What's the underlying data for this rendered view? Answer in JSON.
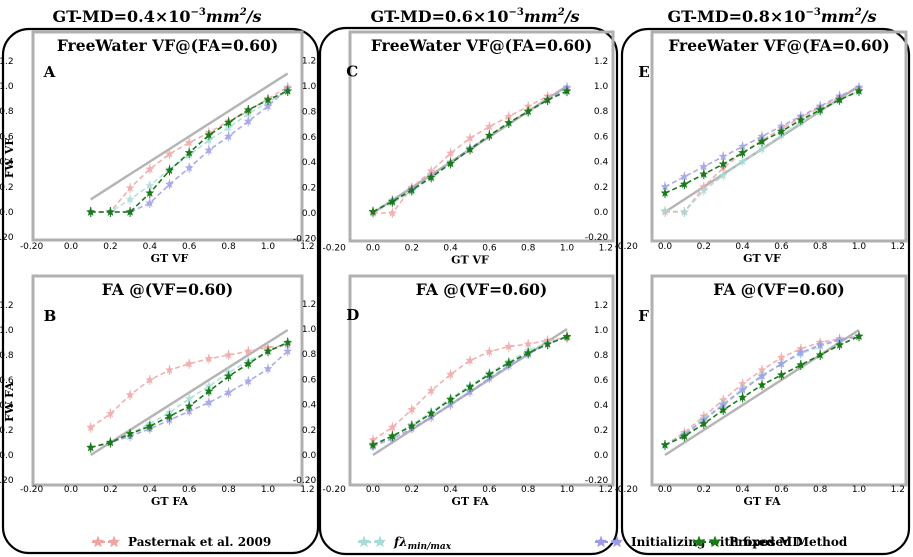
{
  "figure": {
    "col_titles": [
      {
        "prefix": "GT-MD=",
        "value": "0.4",
        "mid": "×10",
        "sup": "−3",
        "unit": "mm",
        "unit_sup": "2",
        "unit_tail": "/s"
      },
      {
        "prefix": "GT-MD=",
        "value": "0.6",
        "mid": "×10",
        "sup": "−3",
        "unit": "mm",
        "unit_sup": "2",
        "unit_tail": "/s"
      },
      {
        "prefix": "GT-MD=",
        "value": "0.8",
        "mid": "×10",
        "sup": "−3",
        "unit": "mm",
        "unit_sup": "2",
        "unit_tail": "/s"
      }
    ],
    "row_ylabels": [
      "FW VF",
      "FW FA"
    ],
    "legend": [
      {
        "label": "Pasternak et al. 2009",
        "color": "#f0a3a3"
      },
      {
        "label_f": "f",
        "label_l": "λ",
        "label_sub": "min/max",
        "color": "#a8dcd9"
      },
      {
        "label": "Initializing with fixed MD",
        "color": "#9c9ce6"
      },
      {
        "label": "Proposed Method",
        "color": "#1a7a1a"
      }
    ],
    "colors": {
      "pasternak": "#f0a3a3",
      "flambda": "#a8dcd9",
      "fixedmd": "#9c9ce6",
      "proposed": "#1a7a1a",
      "identity": "#b5b5b5",
      "frame": "#b0b0b0"
    }
  },
  "chart_data": [
    {
      "type": "line",
      "panel": "A",
      "title": "FreeWater VF@(FA=0.60)",
      "xlabel": "GT VF",
      "ylabel": "FW VF",
      "xlim": [
        -0.2,
        1.2
      ],
      "ylim": [
        -0.2,
        1.2
      ],
      "xticks": [
        "-0.20",
        "0.0",
        "0.2",
        "0.4",
        "0.6",
        "0.8",
        "1.0",
        "1.2"
      ],
      "yticks": [
        "-0.20",
        "0.0",
        "0.2",
        "0.4",
        "0.6",
        "0.8",
        "1.0",
        "1.2"
      ],
      "identity": [
        [
          0.1,
          0.1
        ],
        [
          1.1,
          1.1
        ]
      ],
      "series": [
        {
          "name": "Pasternak et al. 2009",
          "x": [
            0.1,
            0.2,
            0.3,
            0.4,
            0.5,
            0.6,
            0.7,
            0.8,
            0.9,
            1.0,
            1.1
          ],
          "y": [
            0.0,
            0.0,
            0.19,
            0.34,
            0.46,
            0.55,
            0.63,
            0.72,
            0.8,
            0.9,
            0.99
          ]
        },
        {
          "name": "fλmin/max",
          "x": [
            0.1,
            0.2,
            0.3,
            0.4,
            0.5,
            0.6,
            0.7,
            0.8,
            0.9,
            1.0,
            1.1
          ],
          "y": [
            0.0,
            0.0,
            0.1,
            0.21,
            0.34,
            0.45,
            0.57,
            0.67,
            0.78,
            0.87,
            0.96
          ]
        },
        {
          "name": "Initializing with fixed MD",
          "x": [
            0.1,
            0.2,
            0.3,
            0.4,
            0.5,
            0.6,
            0.7,
            0.8,
            0.9,
            1.0,
            1.1
          ],
          "y": [
            0.0,
            0.0,
            0.0,
            0.07,
            0.22,
            0.35,
            0.49,
            0.6,
            0.72,
            0.84,
            0.98
          ]
        },
        {
          "name": "Proposed Method",
          "x": [
            0.1,
            0.2,
            0.3,
            0.4,
            0.5,
            0.6,
            0.7,
            0.8,
            0.9,
            1.0,
            1.1
          ],
          "y": [
            0.0,
            0.0,
            0.0,
            0.15,
            0.33,
            0.47,
            0.61,
            0.71,
            0.81,
            0.89,
            0.96
          ]
        }
      ]
    },
    {
      "type": "line",
      "panel": "B",
      "title": "FA @(VF=0.60)",
      "xlabel": "GT FA",
      "ylabel": "FW FA",
      "xlim": [
        -0.2,
        1.2
      ],
      "ylim": [
        -0.2,
        1.2
      ],
      "xticks": [
        "-0.20",
        "0.0",
        "0.2",
        "0.4",
        "0.6",
        "0.8",
        "1.0",
        "1.2"
      ],
      "yticks": [
        "-0.20",
        "0.0",
        "0.2",
        "0.4",
        "0.6",
        "0.8",
        "1.0",
        "1.2"
      ],
      "identity": [
        [
          0.1,
          0.0
        ],
        [
          1.1,
          1.0
        ]
      ],
      "series": [
        {
          "name": "Pasternak et al. 2009",
          "x": [
            0.1,
            0.2,
            0.3,
            0.4,
            0.5,
            0.6,
            0.7,
            0.8,
            0.9,
            1.0,
            1.1
          ],
          "y": [
            0.22,
            0.33,
            0.48,
            0.6,
            0.68,
            0.73,
            0.77,
            0.8,
            0.83,
            0.86,
            0.88
          ]
        },
        {
          "name": "fλmin/max",
          "x": [
            0.1,
            0.2,
            0.3,
            0.4,
            0.5,
            0.6,
            0.7,
            0.8,
            0.9,
            1.0,
            1.1
          ],
          "y": [
            0.06,
            0.1,
            0.17,
            0.25,
            0.34,
            0.45,
            0.55,
            0.66,
            0.75,
            0.83,
            0.89
          ]
        },
        {
          "name": "Initializing with fixed MD",
          "x": [
            0.1,
            0.2,
            0.3,
            0.4,
            0.5,
            0.6,
            0.7,
            0.8,
            0.9,
            1.0,
            1.1
          ],
          "y": [
            0.06,
            0.1,
            0.15,
            0.21,
            0.28,
            0.35,
            0.42,
            0.5,
            0.59,
            0.69,
            0.83
          ]
        },
        {
          "name": "Proposed Method",
          "x": [
            0.1,
            0.2,
            0.3,
            0.4,
            0.5,
            0.6,
            0.7,
            0.8,
            0.9,
            1.0,
            1.1
          ],
          "y": [
            0.06,
            0.1,
            0.17,
            0.23,
            0.31,
            0.39,
            0.51,
            0.63,
            0.73,
            0.83,
            0.9
          ]
        }
      ]
    },
    {
      "type": "line",
      "panel": "C",
      "title": "FreeWater VF@(FA=0.60)",
      "xlabel": "GT VF",
      "ylabel": "FW VF",
      "xlim": [
        -0.2,
        1.2
      ],
      "ylim": [
        -0.2,
        1.2
      ],
      "xticks": [
        "-0.20",
        "0.0",
        "0.2",
        "0.4",
        "0.6",
        "0.8",
        "1.0",
        "1.2"
      ],
      "yticks": [
        "-0.20",
        "0.0",
        "0.2",
        "0.4",
        "0.6",
        "0.8",
        "1.0",
        "1.2"
      ],
      "identity": [
        [
          0.0,
          0.0
        ],
        [
          1.0,
          1.0
        ]
      ],
      "series": [
        {
          "name": "Pasternak et al. 2009",
          "x": [
            0.0,
            0.1,
            0.2,
            0.3,
            0.4,
            0.5,
            0.6,
            0.7,
            0.8,
            0.9,
            1.0
          ],
          "y": [
            0.0,
            0.0,
            0.2,
            0.33,
            0.47,
            0.59,
            0.68,
            0.76,
            0.84,
            0.92,
            0.98
          ]
        },
        {
          "name": "fλmin/max",
          "x": [
            0.0,
            0.1,
            0.2,
            0.3,
            0.4,
            0.5,
            0.6,
            0.7,
            0.8,
            0.9,
            1.0
          ],
          "y": [
            0.01,
            0.08,
            0.17,
            0.28,
            0.39,
            0.5,
            0.61,
            0.71,
            0.8,
            0.89,
            0.96
          ]
        },
        {
          "name": "Initializing with fixed MD",
          "x": [
            0.0,
            0.1,
            0.2,
            0.3,
            0.4,
            0.5,
            0.6,
            0.7,
            0.8,
            0.9,
            1.0
          ],
          "y": [
            0.01,
            0.1,
            0.19,
            0.29,
            0.4,
            0.51,
            0.61,
            0.71,
            0.8,
            0.89,
            0.99
          ]
        },
        {
          "name": "Proposed Method",
          "x": [
            0.0,
            0.1,
            0.2,
            0.3,
            0.4,
            0.5,
            0.6,
            0.7,
            0.8,
            0.9,
            1.0
          ],
          "y": [
            0.01,
            0.09,
            0.18,
            0.28,
            0.39,
            0.5,
            0.61,
            0.71,
            0.8,
            0.89,
            0.96
          ]
        }
      ]
    },
    {
      "type": "line",
      "panel": "D",
      "title": "FA @(VF=0.60)",
      "xlabel": "GT FA",
      "ylabel": "FW FA",
      "xlim": [
        -0.2,
        1.2
      ],
      "ylim": [
        -0.2,
        1.2
      ],
      "xticks": [
        "-0.20",
        "0.0",
        "0.2",
        "0.4",
        "0.6",
        "0.8",
        "1.0",
        "1.2"
      ],
      "yticks": [
        "-0.20",
        "0.0",
        "0.2",
        "0.4",
        "0.6",
        "0.8",
        "1.0",
        "1.2"
      ],
      "identity": [
        [
          0.0,
          0.0
        ],
        [
          1.0,
          1.0
        ]
      ],
      "series": [
        {
          "name": "Pasternak et al. 2009",
          "x": [
            0.0,
            0.1,
            0.2,
            0.3,
            0.4,
            0.5,
            0.6,
            0.7,
            0.8,
            0.9,
            1.0
          ],
          "y": [
            0.12,
            0.22,
            0.36,
            0.51,
            0.64,
            0.75,
            0.82,
            0.86,
            0.88,
            0.91,
            0.93
          ]
        },
        {
          "name": "fλmin/max",
          "x": [
            0.0,
            0.1,
            0.2,
            0.3,
            0.4,
            0.5,
            0.6,
            0.7,
            0.8,
            0.9,
            1.0
          ],
          "y": [
            0.08,
            0.15,
            0.24,
            0.34,
            0.45,
            0.55,
            0.65,
            0.74,
            0.83,
            0.89,
            0.94
          ]
        },
        {
          "name": "Initializing with fixed MD",
          "x": [
            0.0,
            0.1,
            0.2,
            0.3,
            0.4,
            0.5,
            0.6,
            0.7,
            0.8,
            0.9,
            1.0
          ],
          "y": [
            0.07,
            0.13,
            0.21,
            0.3,
            0.4,
            0.5,
            0.61,
            0.71,
            0.8,
            0.88,
            0.94
          ]
        },
        {
          "name": "Proposed Method",
          "x": [
            0.0,
            0.1,
            0.2,
            0.3,
            0.4,
            0.5,
            0.6,
            0.7,
            0.8,
            0.9,
            1.0
          ],
          "y": [
            0.08,
            0.15,
            0.23,
            0.33,
            0.44,
            0.54,
            0.64,
            0.73,
            0.81,
            0.88,
            0.94
          ]
        }
      ]
    },
    {
      "type": "line",
      "panel": "E",
      "title": "FreeWater VF@(FA=0.60)",
      "xlabel": "GT VF",
      "ylabel": "FW VF",
      "xlim": [
        -0.2,
        1.2
      ],
      "ylim": [
        -0.2,
        1.2
      ],
      "xticks": [
        "-0.20",
        "0.0",
        "0.2",
        "0.4",
        "0.6",
        "0.8",
        "1.0",
        "1.2"
      ],
      "yticks": [
        "-0.20",
        "0.0",
        "0.2",
        "0.4",
        "0.6",
        "0.8",
        "1.0",
        "1.2"
      ],
      "identity": [
        [
          0.0,
          0.0
        ],
        [
          1.0,
          1.0
        ]
      ],
      "series": [
        {
          "name": "Pasternak et al. 2009",
          "x": [
            0.0,
            0.1,
            0.2,
            0.3,
            0.4,
            0.5,
            0.6,
            0.7,
            0.8,
            0.9,
            1.0
          ],
          "y": [
            0.0,
            0.0,
            0.2,
            0.35,
            0.47,
            0.57,
            0.66,
            0.75,
            0.83,
            0.91,
            0.98
          ]
        },
        {
          "name": "fλmin/max",
          "x": [
            0.0,
            0.1,
            0.2,
            0.3,
            0.4,
            0.5,
            0.6,
            0.7,
            0.8,
            0.9,
            1.0
          ],
          "y": [
            0.01,
            0.0,
            0.17,
            0.29,
            0.4,
            0.5,
            0.61,
            0.71,
            0.8,
            0.89,
            0.96
          ]
        },
        {
          "name": "Initializing with fixed MD",
          "x": [
            0.0,
            0.1,
            0.2,
            0.3,
            0.4,
            0.5,
            0.6,
            0.7,
            0.8,
            0.9,
            1.0
          ],
          "y": [
            0.2,
            0.28,
            0.36,
            0.44,
            0.52,
            0.6,
            0.68,
            0.76,
            0.84,
            0.92,
            0.99
          ]
        },
        {
          "name": "Proposed Method",
          "x": [
            0.0,
            0.1,
            0.2,
            0.3,
            0.4,
            0.5,
            0.6,
            0.7,
            0.8,
            0.9,
            1.0
          ],
          "y": [
            0.15,
            0.22,
            0.3,
            0.38,
            0.47,
            0.56,
            0.64,
            0.73,
            0.81,
            0.89,
            0.96
          ]
        }
      ]
    },
    {
      "type": "line",
      "panel": "F",
      "title": "FA @(VF=0.60)",
      "xlabel": "GT FA",
      "ylabel": "FW FA",
      "xlim": [
        -0.2,
        1.2
      ],
      "ylim": [
        -0.2,
        1.2
      ],
      "xticks": [
        "-0.20",
        "0.0",
        "0.2",
        "0.4",
        "0.6",
        "0.8",
        "1.0",
        "1.2"
      ],
      "yticks": [
        "-0.20",
        "0.0",
        "0.2",
        "0.4",
        "0.6",
        "0.8",
        "1.0",
        "1.2"
      ],
      "identity": [
        [
          0.0,
          0.0
        ],
        [
          1.0,
          1.0
        ]
      ],
      "series": [
        {
          "name": "Pasternak et al. 2009",
          "x": [
            0.0,
            0.1,
            0.2,
            0.3,
            0.4,
            0.5,
            0.6,
            0.7,
            0.8,
            0.9,
            1.0
          ],
          "y": [
            0.08,
            0.18,
            0.31,
            0.44,
            0.57,
            0.68,
            0.78,
            0.85,
            0.9,
            0.93,
            0.95
          ]
        },
        {
          "name": "fλmin/max",
          "x": [
            0.0,
            0.1,
            0.2,
            0.3,
            0.4,
            0.5,
            0.6,
            0.7,
            0.8,
            0.9,
            1.0
          ],
          "y": [
            0.08,
            0.17,
            0.29,
            0.41,
            0.53,
            0.64,
            0.73,
            0.81,
            0.87,
            0.92,
            0.95
          ]
        },
        {
          "name": "Initializing with fixed MD",
          "x": [
            0.0,
            0.1,
            0.2,
            0.3,
            0.4,
            0.5,
            0.6,
            0.7,
            0.8,
            0.9,
            1.0
          ],
          "y": [
            0.08,
            0.16,
            0.28,
            0.4,
            0.52,
            0.63,
            0.73,
            0.82,
            0.88,
            0.92,
            0.95
          ]
        },
        {
          "name": "Proposed Method",
          "x": [
            0.0,
            0.1,
            0.2,
            0.3,
            0.4,
            0.5,
            0.6,
            0.7,
            0.8,
            0.9,
            1.0
          ],
          "y": [
            0.08,
            0.15,
            0.25,
            0.36,
            0.46,
            0.56,
            0.64,
            0.72,
            0.8,
            0.88,
            0.95
          ]
        }
      ]
    }
  ]
}
